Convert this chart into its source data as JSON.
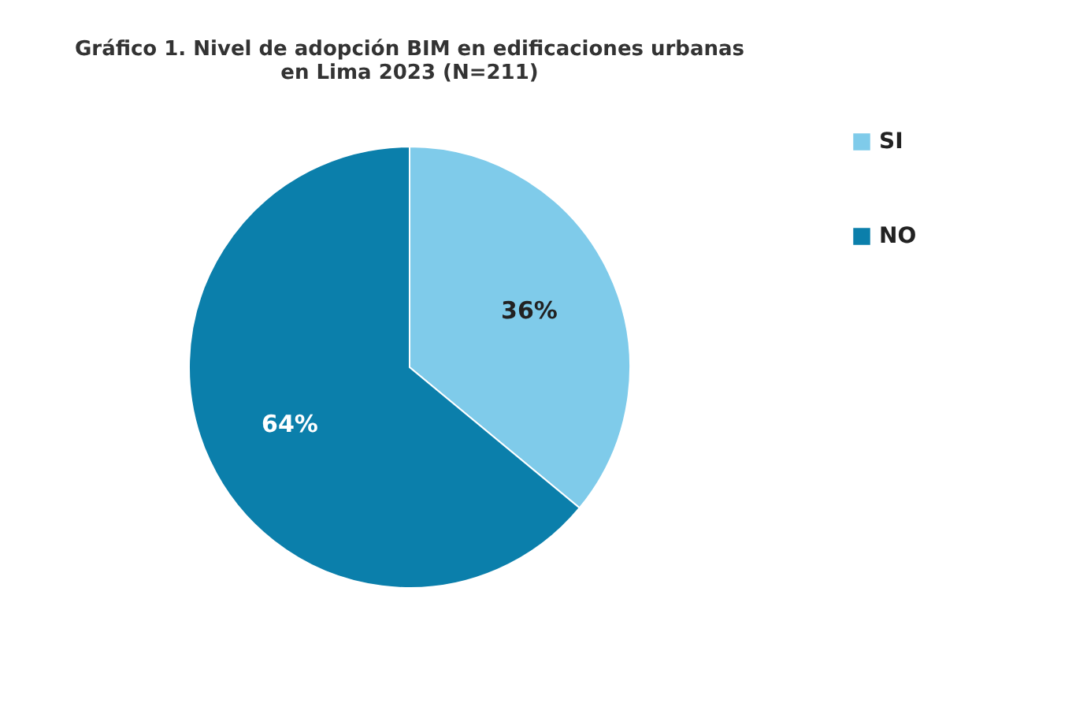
{
  "chart_data": {
    "type": "pie",
    "title": "Gráfico 1. Nivel de adopción BIM en edificaciones urbanas en Lima 2023 (N=211)",
    "categories": [
      "SI",
      "NO"
    ],
    "values": [
      36,
      64
    ],
    "colors": [
      "#7fcbea",
      "#0b7fab"
    ],
    "value_labels": [
      "36%",
      "64%"
    ],
    "legend": "right"
  }
}
